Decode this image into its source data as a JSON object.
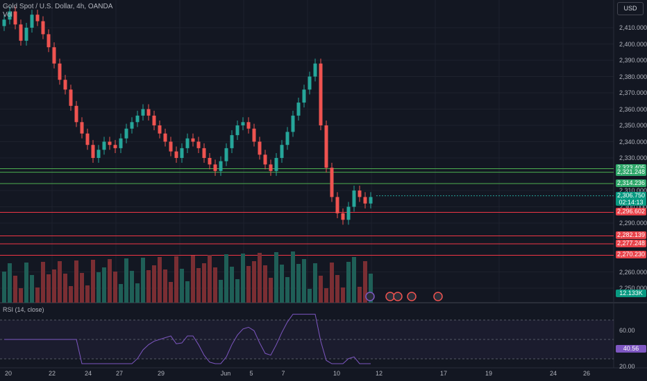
{
  "header": {
    "title": "Gold Spot / U.S. Dollar, 4h, OANDA",
    "vol_label": "Vol"
  },
  "currency_button": "USD",
  "price_ticks": [
    "2,410.000",
    "2,400.000",
    "2,390.000",
    "2,380.000",
    "2,370.000",
    "2,360.000",
    "2,350.000",
    "2,340.000",
    "2,330.000",
    "2,310.000",
    "2,300.000",
    "2,290.000",
    "2,260.000",
    "2,250.000"
  ],
  "price_ticks_values": [
    2410,
    2400,
    2390,
    2380,
    2370,
    2360,
    2350,
    2340,
    2330,
    2310,
    2300,
    2290,
    2260,
    2250
  ],
  "levels": [
    {
      "label": "2,323.405",
      "value": 2323.405,
      "color": "#4caf50",
      "style": "green"
    },
    {
      "label": "2,321.248",
      "value": 2321.248,
      "color": "#4caf50",
      "style": "green"
    },
    {
      "label": "2,314.236",
      "value": 2314.236,
      "color": "#4caf50",
      "style": "green"
    },
    {
      "label": "2,296.602",
      "value": 2296.602,
      "color": "#f23645",
      "style": "red"
    },
    {
      "label": "2,282.139",
      "value": 2282.139,
      "color": "#f23645",
      "style": "red"
    },
    {
      "label": "2,277.248",
      "value": 2277.248,
      "color": "#f23645",
      "style": "red"
    },
    {
      "label": "2,270.230",
      "value": 2270.23,
      "color": "#f23645",
      "style": "red"
    }
  ],
  "current_price": {
    "label": "2,306.750",
    "countdown": "02:14:13",
    "value": 2306.75
  },
  "volume_label": "12.133K",
  "rsi": {
    "title": "RSI (14, close)",
    "value_label": "40.56",
    "ticks": [
      "60.00",
      "20.00"
    ]
  },
  "x_ticks": [
    "20",
    "22",
    "24",
    "27",
    "29",
    "Jun",
    "5",
    "7",
    "10",
    "12",
    "17",
    "19",
    "24",
    "26"
  ],
  "colors": {
    "up": "#26a69a",
    "down": "#ef5350",
    "background": "#131722",
    "rsi": "#7e57c2"
  },
  "chart_data": {
    "type": "candlestick",
    "title": "Gold Spot / U.S. Dollar, 4h, OANDA",
    "closes": [
      2415,
      2420,
      2412,
      2402,
      2410,
      2418,
      2414,
      2406,
      2398,
      2388,
      2378,
      2372,
      2362,
      2352,
      2345,
      2338,
      2330,
      2335,
      2340,
      2338,
      2336,
      2342,
      2348,
      2352,
      2356,
      2360,
      2356,
      2350,
      2345,
      2340,
      2334,
      2330,
      2336,
      2342,
      2340,
      2336,
      2330,
      2326,
      2322,
      2328,
      2336,
      2344,
      2350,
      2352,
      2348,
      2340,
      2332,
      2326,
      2322,
      2330,
      2338,
      2346,
      2356,
      2364,
      2372,
      2380,
      2388,
      2350,
      2324,
      2306,
      2296,
      2292,
      2300,
      2310,
      2306,
      2302,
      2306
    ],
    "ylim": [
      2245,
      2430
    ]
  }
}
